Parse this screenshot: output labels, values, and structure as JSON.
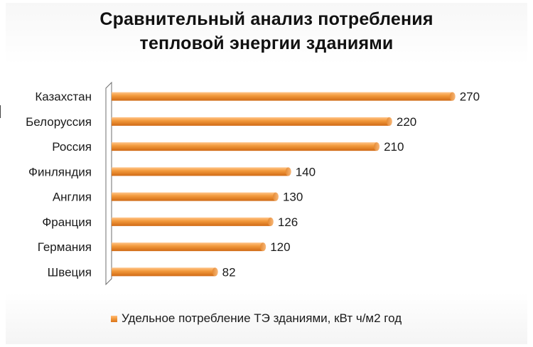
{
  "chart_data": {
    "type": "bar",
    "orientation": "horizontal",
    "title": [
      "Сравнительный анализ потребления",
      "тепловой энергии зданиями"
    ],
    "categories": [
      "Казахстан",
      "Белоруссия",
      "Россия",
      "Финляндия",
      "Англия",
      "Франция",
      "Германия",
      "Швеция"
    ],
    "series": [
      {
        "name": "Удельное потребление ТЭ зданиями, кВт ч/м2 год",
        "values": [
          270,
          220,
          210,
          140,
          130,
          126,
          120,
          82
        ],
        "color": "#f0913a"
      }
    ],
    "xlim": [
      0,
      300
    ],
    "grid": false,
    "legend_position": "bottom",
    "data_labels": true
  }
}
